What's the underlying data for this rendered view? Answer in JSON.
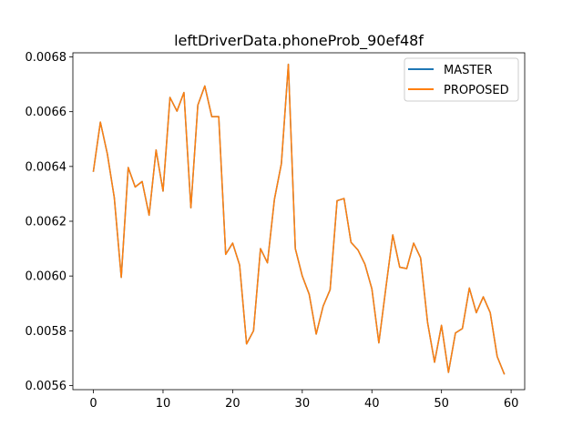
{
  "chart_data": {
    "type": "line",
    "title": "leftDriverData.phoneProb_90ef48f",
    "xlabel": "",
    "ylabel": "",
    "xlim": [
      -2.95,
      61.95
    ],
    "ylim": [
      0.005585,
      0.006815
    ],
    "xticks": [
      0,
      10,
      20,
      30,
      40,
      50,
      60
    ],
    "yticks": [
      0.0056,
      0.0058,
      0.006,
      0.0062,
      0.0064,
      0.0066,
      0.0068
    ],
    "ytick_labels": [
      "0.0056",
      "0.0058",
      "0.0060",
      "0.0062",
      "0.0064",
      "0.0066",
      "0.0068"
    ],
    "grid": false,
    "legend_position": "upper-right",
    "x": [
      0,
      1,
      2,
      3,
      4,
      5,
      6,
      7,
      8,
      9,
      10,
      11,
      12,
      13,
      14,
      15,
      16,
      17,
      18,
      19,
      20,
      21,
      22,
      23,
      24,
      25,
      26,
      27,
      28,
      29,
      30,
      31,
      32,
      33,
      34,
      35,
      36,
      37,
      38,
      39,
      40,
      41,
      42,
      43,
      44,
      45,
      46,
      47,
      48,
      49,
      50,
      51,
      52,
      53,
      54,
      55,
      56,
      57,
      58,
      59
    ],
    "series": [
      {
        "name": "MASTER",
        "color": "#1f77b4",
        "values": [
          0.006383,
          0.006562,
          0.006446,
          0.006286,
          0.005995,
          0.006396,
          0.006325,
          0.006345,
          0.006222,
          0.00646,
          0.00631,
          0.006652,
          0.006602,
          0.00667,
          0.006249,
          0.006624,
          0.006694,
          0.006582,
          0.006582,
          0.006079,
          0.00612,
          0.00604,
          0.005752,
          0.0058,
          0.0061,
          0.006048,
          0.00628,
          0.00641,
          0.006773,
          0.0061,
          0.006,
          0.005933,
          0.005788,
          0.00589,
          0.00595,
          0.006275,
          0.006283,
          0.006123,
          0.006095,
          0.006043,
          0.005953,
          0.005756,
          0.005955,
          0.00615,
          0.006032,
          0.006027,
          0.00612,
          0.006066,
          0.00583,
          0.005685,
          0.00582,
          0.005648,
          0.005792,
          0.005808,
          0.005956,
          0.005866,
          0.005924,
          0.005866,
          0.005706,
          0.005643
        ]
      },
      {
        "name": "PROPOSED",
        "color": "#ff7f0e",
        "values": [
          0.006383,
          0.006562,
          0.006446,
          0.006286,
          0.005995,
          0.006396,
          0.006325,
          0.006345,
          0.006222,
          0.00646,
          0.00631,
          0.006652,
          0.006602,
          0.00667,
          0.006249,
          0.006624,
          0.006694,
          0.006582,
          0.006582,
          0.006079,
          0.00612,
          0.00604,
          0.005752,
          0.0058,
          0.0061,
          0.006048,
          0.00628,
          0.00641,
          0.006773,
          0.0061,
          0.006,
          0.005933,
          0.005788,
          0.00589,
          0.00595,
          0.006275,
          0.006283,
          0.006123,
          0.006095,
          0.006043,
          0.005953,
          0.005756,
          0.005955,
          0.00615,
          0.006032,
          0.006027,
          0.00612,
          0.006066,
          0.00583,
          0.005685,
          0.00582,
          0.005648,
          0.005792,
          0.005808,
          0.005956,
          0.005866,
          0.005924,
          0.005866,
          0.005706,
          0.005643
        ]
      }
    ]
  }
}
